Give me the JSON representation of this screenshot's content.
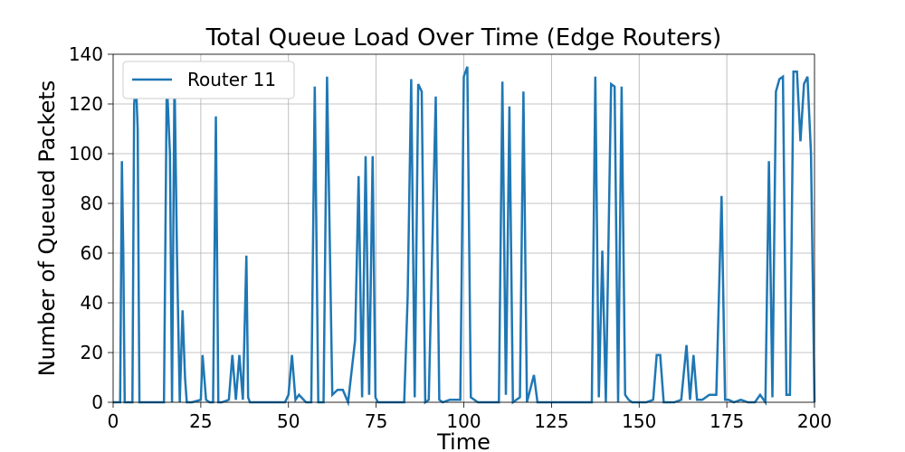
{
  "chart_data": {
    "type": "line",
    "title": "Total Queue Load Over Time (Edge Routers)",
    "xlabel": "Time",
    "ylabel": "Number of Queued Packets",
    "xlim": [
      0,
      200
    ],
    "ylim": [
      0,
      140
    ],
    "xticks": [
      0,
      25,
      50,
      75,
      100,
      125,
      150,
      175,
      200
    ],
    "yticks": [
      0,
      20,
      40,
      60,
      80,
      100,
      120,
      140
    ],
    "grid": true,
    "legend_position": "top-left",
    "series": [
      {
        "name": "Router 11",
        "color": "#1f77b4",
        "x": [
          0,
          2.0,
          2.5,
          2.9,
          3.3,
          5.5,
          6.0,
          6.5,
          7.0,
          7.5,
          8.0,
          14.5,
          15.3,
          16.2,
          16.8,
          17.5,
          18.2,
          19.0,
          19.8,
          20.5,
          21.0,
          22.5,
          25.0,
          25.5,
          26.5,
          27.5,
          28.5,
          29.3,
          30.0,
          31.0,
          33.0,
          34.0,
          35.0,
          36.0,
          37.0,
          38.0,
          38.5,
          39.0,
          45.0,
          49.0,
          50.0,
          51.0,
          52.0,
          53.0,
          55.0,
          56.5,
          57.5,
          58.5,
          60.0,
          61.0,
          62.5,
          64.0,
          65.5,
          67.0,
          69.0,
          70.0,
          71.0,
          72.0,
          73.0,
          74.0,
          74.8,
          75.5,
          80.0,
          83.0,
          84.0,
          85.0,
          86.0,
          87.0,
          88.0,
          89.0,
          90.0,
          92.0,
          93.0,
          94.0,
          96.0,
          99.0,
          100.0,
          101.0,
          102.0,
          104.0,
          108.0,
          110.0,
          111.0,
          112.0,
          113.0,
          114.0,
          116.0,
          117.0,
          118.0,
          120.0,
          121.0,
          125.0,
          130.0,
          135.0,
          136.5,
          137.5,
          138.5,
          139.5,
          140.5,
          142.0,
          143.0,
          144.0,
          145.0,
          146.0,
          147.0,
          148.0,
          150.0,
          152.0,
          154.0,
          155.0,
          156.0,
          157.0,
          158.0,
          160.0,
          162.0,
          163.5,
          164.5,
          165.5,
          166.5,
          168.0,
          170.0,
          172.0,
          173.5,
          174.5,
          175.5,
          177.0,
          179.0,
          181.0,
          183.0,
          184.5,
          186.0,
          187.0,
          188.0,
          189.0,
          190.0,
          191.0,
          192.0,
          193.0,
          194.0,
          195.0,
          196.0,
          197.0,
          198.0,
          199.0,
          200.0
        ],
        "y": [
          0,
          0,
          97,
          60,
          0,
          0,
          120,
          129,
          110,
          0,
          0,
          0,
          130,
          100,
          0,
          132,
          60,
          0,
          37,
          10,
          0,
          0,
          1,
          19,
          1,
          0,
          0,
          115,
          0,
          0,
          1,
          19,
          1,
          19,
          1,
          59,
          2,
          0,
          0,
          0,
          3,
          19,
          1,
          3,
          0,
          0,
          127,
          0,
          0,
          131,
          3,
          5,
          5,
          0,
          25,
          91,
          2,
          99,
          3,
          99,
          2,
          0,
          0,
          0,
          43,
          130,
          2,
          128,
          125,
          0,
          1,
          123,
          1,
          0,
          1,
          1,
          131,
          135,
          2,
          0,
          0,
          0,
          129,
          3,
          119,
          0,
          2,
          125,
          0,
          11,
          0,
          0,
          0,
          0,
          0,
          131,
          2,
          61,
          0,
          128,
          127,
          0,
          127,
          3,
          1,
          0,
          0,
          0,
          1,
          19,
          19,
          0,
          0,
          0,
          1,
          23,
          1,
          19,
          1,
          1,
          3,
          3,
          83,
          1,
          1,
          0,
          1,
          0,
          0,
          3,
          0,
          97,
          2,
          125,
          130,
          131,
          3,
          3,
          133,
          133,
          105,
          128,
          131,
          100,
          0
        ]
      }
    ]
  }
}
